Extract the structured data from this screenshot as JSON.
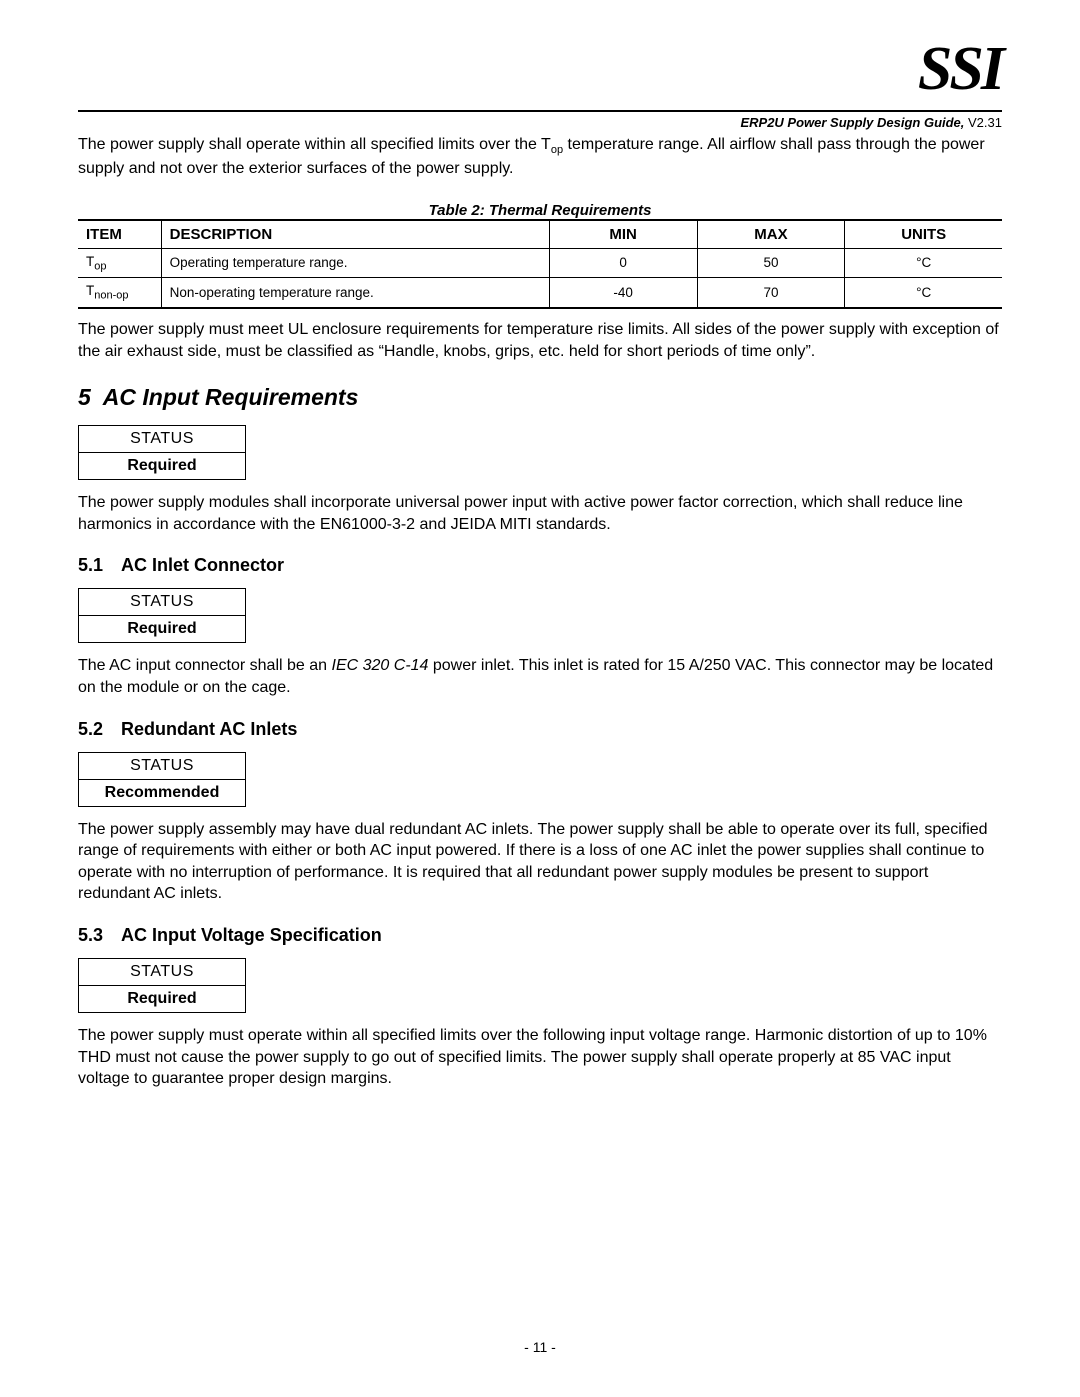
{
  "logo": "SSI",
  "doc_title_bold": "ERP2U Power Supply Design Guide, ",
  "doc_title_ver": "V2.31",
  "intro_para_pre": "The power supply shall operate within all specified limits over the T",
  "intro_para_sub": "op",
  "intro_para_post": " temperature range.  All airflow shall pass through the power supply and not over the exterior surfaces of the power supply.",
  "table2": {
    "caption": "Table 2:  Thermal Requirements",
    "headers": {
      "item": "ITEM",
      "desc": "DESCRIPTION",
      "min": "MIN",
      "max": "MAX",
      "units": "UNITS"
    },
    "rows": [
      {
        "item_pre": "T",
        "item_sub": "op",
        "desc": "Operating temperature range.",
        "min": "0",
        "max": "50",
        "units": "°C"
      },
      {
        "item_pre": "T",
        "item_sub": "non-op",
        "desc": "Non-operating temperature range.",
        "min": "-40",
        "max": "70",
        "units": "°C"
      }
    ]
  },
  "ul_para": "The power supply must meet UL enclosure requirements for temperature rise limits.  All sides of the power supply with exception of the air exhaust side, must be classified as “Handle, knobs, grips, etc. held for short periods of time only”.",
  "sec5": {
    "num": "5",
    "title": "AC Input Requirements",
    "status_label": "STATUS",
    "status_value": "Required",
    "para": "The power supply modules shall incorporate universal power input with active power factor correction, which shall reduce line harmonics in accordance with the EN61000-3-2 and JEIDA MITI standards."
  },
  "sec51": {
    "num": "5.1",
    "title": "AC Inlet Connector",
    "status_label": "STATUS",
    "status_value": "Required",
    "para_pre": "The AC input connector shall be an ",
    "para_italic": "IEC 320 C-14",
    "para_post": " power inlet.  This inlet is rated for 15 A/250 VAC.  This connector may be located on the module or on the cage."
  },
  "sec52": {
    "num": "5.2",
    "title": "Redundant AC Inlets",
    "status_label": "STATUS",
    "status_value": "Recommended",
    "para": "The power supply assembly may have dual redundant AC inlets.  The power supply shall be able to operate over its full, specified range of requirements with either or both AC input powered.  If there is a loss of one AC inlet the power supplies shall continue to operate with no interruption of performance.  It is required that all redundant power supply modules be present to support redundant AC inlets."
  },
  "sec53": {
    "num": "5.3",
    "title": "AC Input Voltage Specification",
    "status_label": "STATUS",
    "status_value": "Required",
    "para": "The power supply must operate within all specified limits over the following input voltage range.  Harmonic distortion of up to 10% THD must not cause the power supply to go out of specified limits.  The power supply shall operate properly at 85 VAC input voltage to guarantee proper design margins."
  },
  "page_number": "- 11 -"
}
